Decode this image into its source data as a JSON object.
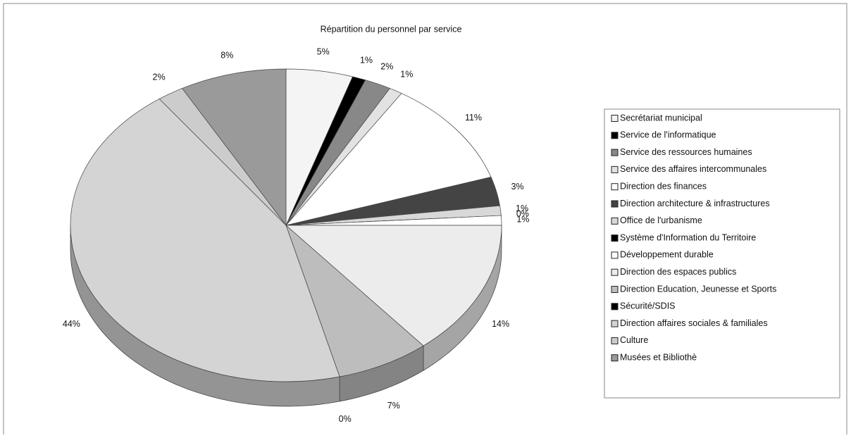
{
  "chart_data": {
    "type": "pie3d",
    "title": "Répartition du personnel par service",
    "categories": [
      "Secrétariat municipal",
      "Service de l'informatique",
      "Service des ressources humaines",
      "Service des affaires intercommunales",
      "Direction des finances",
      "Direction architecture & infrastructures",
      "Office de l'urbanisme",
      "Système d'Information du Territoire",
      "Développement durable",
      "Direction des espaces publics",
      "Direction Education, Jeunesse et Sports",
      "Sécurité/SDIS",
      "Direction affaires sociales & familiales",
      "Culture",
      "Musées et Bibliothè"
    ],
    "values": [
      5,
      1,
      2,
      1,
      11,
      3,
      1,
      0,
      1,
      14,
      7,
      0,
      44,
      2,
      8
    ],
    "value_labels": [
      "5%",
      "1%",
      "2%",
      "1%",
      "11%",
      "3%",
      "1%",
      "0%",
      "1%",
      "14%",
      "7%",
      "0%",
      "44%",
      "2%",
      "8%"
    ],
    "colors": [
      "#f4f4f4",
      "#000000",
      "#888888",
      "#e2e2e2",
      "#ffffff",
      "#444444",
      "#d8d8d8",
      "#000000",
      "#ffffff",
      "#ececec",
      "#bdbdbd",
      "#000000",
      "#d4d4d4",
      "#cccccc",
      "#9a9a9a"
    ],
    "legend": "right"
  }
}
